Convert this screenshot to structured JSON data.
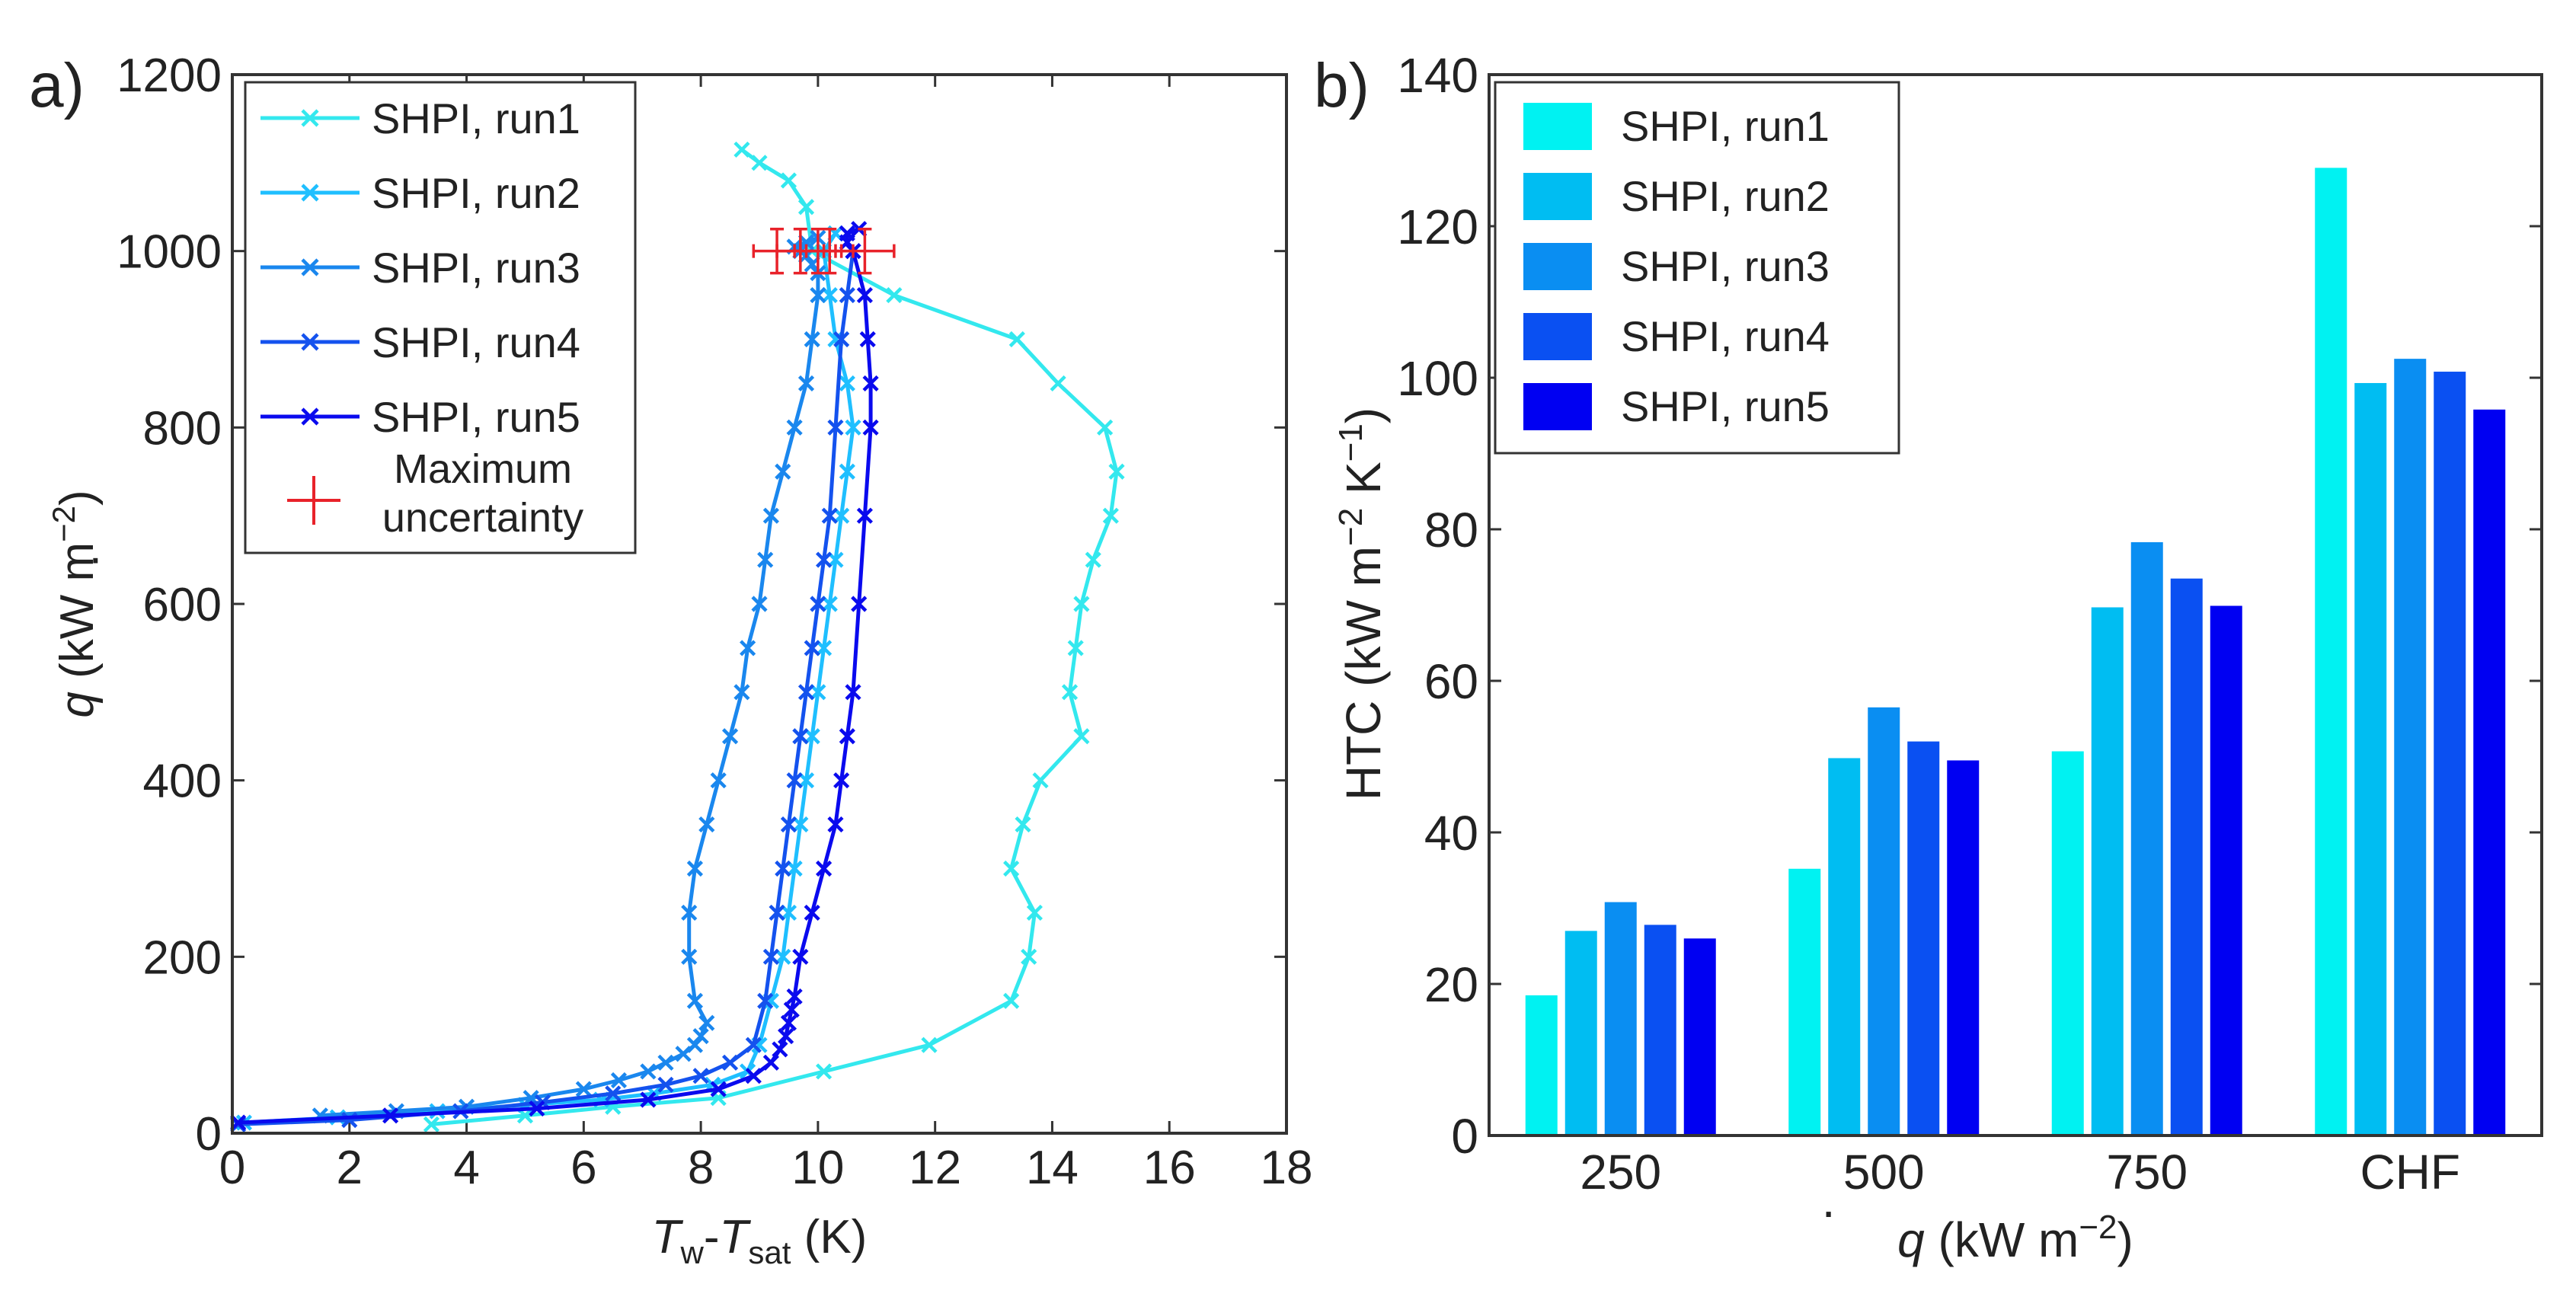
{
  "chart_data": [
    {
      "type": "line",
      "panel_label": "a)",
      "title": "",
      "xlabel": {
        "main1": "T",
        "sub1": "w",
        "dash": "-",
        "main2": "T",
        "sub2": "sat",
        "unit": " (K)"
      },
      "ylabel": {
        "symbol": "q",
        "unit": " (kW m",
        "exp": "−2",
        "close": ")"
      },
      "xlim": [
        0,
        18
      ],
      "ylim": [
        0,
        1200
      ],
      "xticks": [
        0,
        2,
        4,
        6,
        8,
        10,
        12,
        14,
        16,
        18
      ],
      "yticks": [
        0,
        200,
        400,
        600,
        800,
        1000,
        1200
      ],
      "legend": {
        "position": "top-left",
        "uncertainty_line1": "Maximum",
        "uncertainty_line2": "uncertainty"
      },
      "series": [
        {
          "name": "SHPI, run1",
          "color": "#33e8ee",
          "x": [
            3.4,
            5.0,
            6.5,
            8.3,
            10.1,
            11.9,
            13.3,
            13.6,
            13.7,
            13.3,
            13.5,
            13.8,
            14.5,
            14.3,
            14.4,
            14.5,
            14.7,
            15.0,
            15.1,
            14.9,
            14.1,
            13.4,
            11.3,
            9.9,
            9.8,
            9.5,
            9.0,
            8.7
          ],
          "y": [
            10,
            20,
            30,
            40,
            70,
            100,
            150,
            200,
            250,
            300,
            350,
            400,
            450,
            500,
            550,
            600,
            650,
            700,
            750,
            800,
            850,
            900,
            950,
            1000,
            1050,
            1080,
            1100,
            1115
          ]
        },
        {
          "name": "SHPI, run2",
          "color": "#1fbfff",
          "x": [
            0.2,
            1.8,
            3.5,
            5.0,
            6.3,
            7.2,
            8.2,
            8.8,
            9.0,
            9.2,
            9.4,
            9.5,
            9.6,
            9.7,
            9.8,
            9.9,
            10.0,
            10.1,
            10.2,
            10.3,
            10.4,
            10.5,
            10.6,
            10.5,
            10.3,
            10.2,
            10.1,
            10.3
          ],
          "y": [
            12,
            18,
            25,
            32,
            38,
            45,
            55,
            70,
            100,
            150,
            200,
            250,
            300,
            350,
            400,
            450,
            500,
            550,
            600,
            650,
            700,
            750,
            800,
            850,
            900,
            950,
            1000,
            1020
          ]
        },
        {
          "name": "SHPI, run3",
          "color": "#1a87ee",
          "x": [
            1.5,
            2.8,
            4.0,
            5.1,
            6.0,
            6.6,
            7.1,
            7.4,
            7.7,
            7.9,
            8.0,
            8.1,
            7.9,
            7.8,
            7.8,
            7.9,
            8.1,
            8.3,
            8.5,
            8.7,
            8.8,
            9.0,
            9.1,
            9.2,
            9.4,
            9.6,
            9.8,
            9.9,
            10.0,
            10.0,
            9.9,
            9.8,
            9.7,
            9.6,
            9.8,
            10.0
          ],
          "y": [
            20,
            25,
            30,
            40,
            50,
            60,
            70,
            80,
            90,
            100,
            110,
            125,
            150,
            200,
            250,
            300,
            350,
            400,
            450,
            500,
            550,
            600,
            650,
            700,
            750,
            800,
            850,
            900,
            950,
            975,
            985,
            995,
            1000,
            1005,
            1010,
            1015
          ]
        },
        {
          "name": "SHPI, run4",
          "color": "#1452ee",
          "x": [
            0.1,
            2.0,
            3.9,
            5.3,
            6.5,
            7.4,
            8.0,
            8.5,
            8.9,
            9.1,
            9.2,
            9.3,
            9.4,
            9.5,
            9.6,
            9.7,
            9.8,
            9.9,
            10.0,
            10.1,
            10.2,
            10.3,
            10.4,
            10.5,
            10.6
          ],
          "y": [
            10,
            15,
            25,
            35,
            45,
            55,
            65,
            80,
            100,
            150,
            200,
            250,
            300,
            350,
            400,
            450,
            500,
            550,
            600,
            650,
            700,
            800,
            900,
            950,
            1000
          ]
        },
        {
          "name": "SHPI, run5",
          "color": "#0a0aee",
          "x": [
            0.1,
            2.7,
            5.2,
            7.1,
            8.3,
            8.9,
            9.2,
            9.35,
            9.45,
            9.5,
            9.55,
            9.6,
            9.7,
            9.9,
            10.1,
            10.3,
            10.4,
            10.5,
            10.6,
            10.7,
            10.8,
            10.9,
            10.9,
            10.85,
            10.8,
            10.6,
            10.5,
            10.5,
            10.7
          ],
          "y": [
            12,
            20,
            28,
            38,
            50,
            65,
            80,
            95,
            110,
            125,
            140,
            155,
            200,
            250,
            300,
            350,
            400,
            450,
            500,
            600,
            700,
            800,
            850,
            900,
            950,
            1000,
            1010,
            1020,
            1025
          ]
        }
      ],
      "error_bars": {
        "color": "#e8222a",
        "points": [
          {
            "x": 9.3,
            "y": 1000,
            "xerr": 0.4,
            "yerr": 25
          },
          {
            "x": 9.7,
            "y": 1000,
            "xerr": 0.4,
            "yerr": 25
          },
          {
            "x": 10.0,
            "y": 1000,
            "xerr": 0.4,
            "yerr": 25
          },
          {
            "x": 10.2,
            "y": 1000,
            "xerr": 0.4,
            "yerr": 25
          },
          {
            "x": 10.8,
            "y": 1000,
            "xerr": 0.5,
            "yerr": 25
          }
        ]
      }
    },
    {
      "type": "bar",
      "panel_label": "b)",
      "title": "",
      "xlabel": {
        "symbol": "q",
        "unit": " (kW m",
        "exp": "−2",
        "close": ")"
      },
      "ylabel": {
        "main": "HTC (kW m",
        "exp1": "−2",
        "mid": " K",
        "exp2": "−1",
        "close": ")"
      },
      "ylim": [
        0,
        140
      ],
      "yticks": [
        0,
        20,
        40,
        60,
        80,
        100,
        120,
        140
      ],
      "categories": [
        "250",
        "500",
        "750",
        "CHF"
      ],
      "legend": {
        "position": "top-left"
      },
      "series": [
        {
          "name": "SHPI, run1",
          "color": "#00f2f2",
          "values": [
            18.5,
            35.2,
            50.7,
            127.7
          ]
        },
        {
          "name": "SHPI, run2",
          "color": "#00bdf2",
          "values": [
            27.0,
            49.8,
            69.7,
            99.3
          ]
        },
        {
          "name": "SHPI, run3",
          "color": "#0a8ef2",
          "values": [
            30.8,
            56.5,
            78.3,
            102.5
          ]
        },
        {
          "name": "SHPI, run4",
          "color": "#0a50f2",
          "values": [
            27.8,
            52.0,
            73.5,
            100.8
          ]
        },
        {
          "name": "SHPI, run5",
          "color": "#0000f2",
          "values": [
            26.0,
            49.5,
            69.9,
            95.8
          ]
        }
      ]
    }
  ]
}
